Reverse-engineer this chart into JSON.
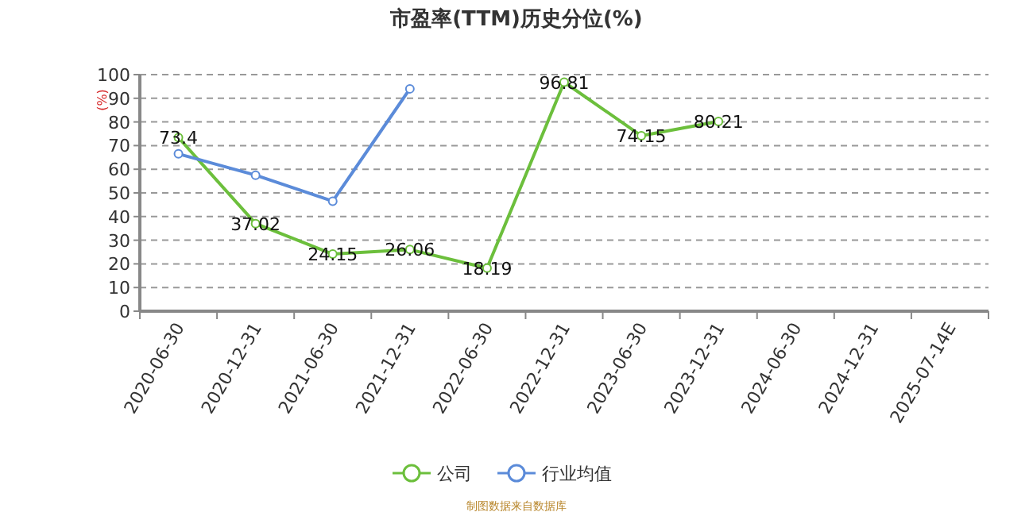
{
  "chart_data": {
    "type": "line",
    "title": "市盈率(TTM)历史分位(%)",
    "ylabel": "(%)",
    "categories": [
      "2020-06-30",
      "2020-12-31",
      "2021-06-30",
      "2021-12-31",
      "2022-06-30",
      "2022-12-31",
      "2023-06-30",
      "2023-12-31",
      "2024-06-30",
      "2024-12-31",
      "2025-07-14E"
    ],
    "series": [
      {
        "name": "公司",
        "color": "#6cbf3c",
        "values": [
          73.4,
          37.02,
          24.15,
          26.06,
          18.19,
          96.81,
          74.15,
          80.21,
          null,
          null,
          null
        ],
        "value_labels": [
          "73.4",
          "37.02",
          "24.15",
          "26.06",
          "18.19",
          "96.81",
          "74.15",
          "80.21",
          null,
          null,
          null
        ]
      },
      {
        "name": "行业均值",
        "color": "#5b8bd9",
        "values": [
          66.5,
          57.5,
          46.5,
          94,
          null,
          null,
          null,
          null,
          null,
          null,
          null
        ]
      }
    ],
    "ylim": [
      0,
      100
    ],
    "yticks": [
      0,
      10,
      20,
      30,
      40,
      50,
      60,
      70,
      80,
      90,
      100
    ],
    "grid": "y",
    "legend": "bottom",
    "marker": "circle",
    "annotations": [
      "制图数据来自数据库"
    ]
  }
}
